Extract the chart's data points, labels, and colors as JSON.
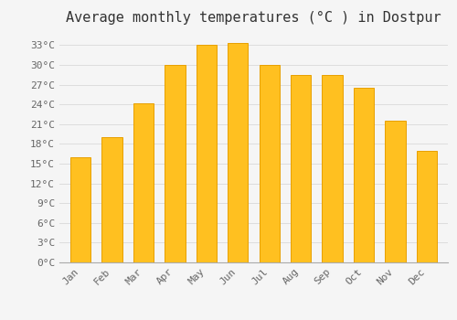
{
  "title": "Average monthly temperatures (°C ) in Dostpur",
  "months": [
    "Jan",
    "Feb",
    "Mar",
    "Apr",
    "May",
    "Jun",
    "Jul",
    "Aug",
    "Sep",
    "Oct",
    "Nov",
    "Dec"
  ],
  "values": [
    16.0,
    19.0,
    24.2,
    30.0,
    33.0,
    33.3,
    30.0,
    28.5,
    28.5,
    26.5,
    21.5,
    17.0
  ],
  "bar_color_face": "#FFC020",
  "bar_color_edge": "#E8A000",
  "background_color": "#f5f5f5",
  "plot_bg_color": "#f5f5f5",
  "grid_color": "#dddddd",
  "ytick_labels": [
    "0°C",
    "3°C",
    "6°C",
    "9°C",
    "12°C",
    "15°C",
    "18°C",
    "21°C",
    "24°C",
    "27°C",
    "30°C",
    "33°C"
  ],
  "ytick_values": [
    0,
    3,
    6,
    9,
    12,
    15,
    18,
    21,
    24,
    27,
    30,
    33
  ],
  "ylim": [
    0,
    35
  ],
  "title_fontsize": 11,
  "tick_fontsize": 8,
  "tick_font_family": "monospace",
  "title_color": "#333333",
  "tick_color": "#666666"
}
